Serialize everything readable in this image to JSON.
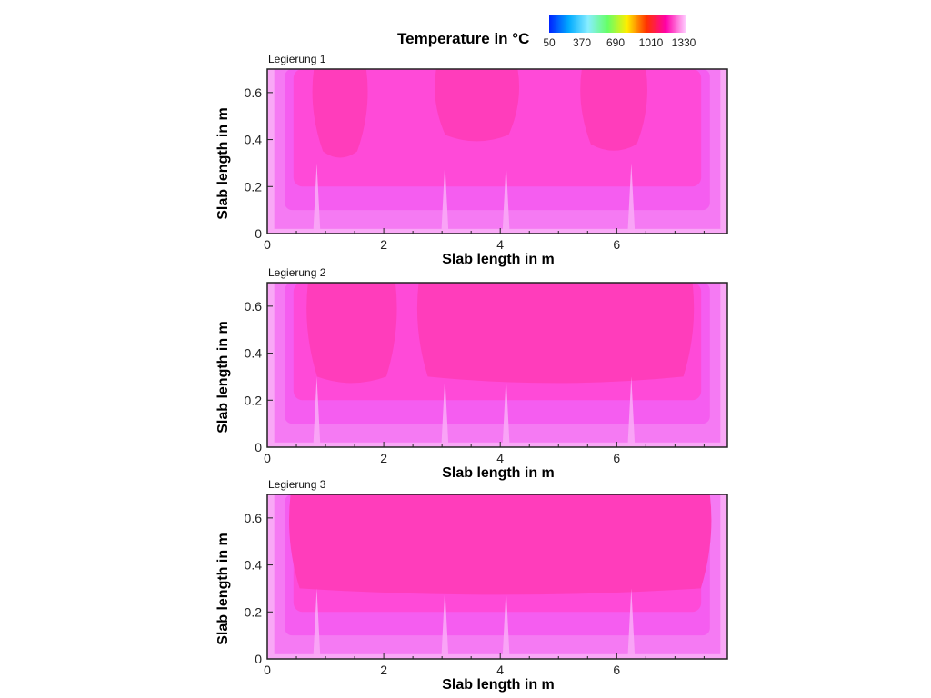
{
  "legend": {
    "title": "Temperature in °C",
    "ticks": [
      "50",
      "370",
      "690",
      "1010",
      "1330"
    ],
    "colors": [
      "#0022ff",
      "#00aaff",
      "#88eeff",
      "#66ff66",
      "#ffee00",
      "#ff3300",
      "#ff00aa",
      "#ffccff"
    ]
  },
  "colors": {
    "hot": "#ff3dbb",
    "warm": "#ff4ad8",
    "medium": "#f55df0",
    "cool": "#f57af3",
    "edge": "#f9a8f6",
    "frame": "#222222"
  },
  "chart_data": [
    {
      "type": "heatmap",
      "title": "Legierung 1",
      "xlabel": "Slab length in m",
      "ylabel": "Slab length in m",
      "xlim": [
        0,
        7.9
      ],
      "ylim": [
        0,
        0.7
      ],
      "xticks": [
        "0",
        "2",
        "4",
        "6"
      ],
      "yticks": [
        "0",
        "0.2",
        "0.4",
        "0.6"
      ],
      "hot_zones": [
        {
          "x": [
            0.8,
            1.7
          ],
          "y": [
            0.35,
            0.7
          ]
        },
        {
          "x": [
            2.9,
            4.3
          ],
          "y": [
            0.42,
            0.7
          ]
        },
        {
          "x": [
            5.4,
            6.5
          ],
          "y": [
            0.38,
            0.7
          ]
        }
      ]
    },
    {
      "type": "heatmap",
      "title": "Legierung 2",
      "xlabel": "Slab length in m",
      "ylabel": "Slab length in m",
      "xlim": [
        0,
        7.9
      ],
      "ylim": [
        0,
        0.7
      ],
      "xticks": [
        "0",
        "2",
        "4",
        "6"
      ],
      "yticks": [
        "0",
        "0.2",
        "0.4",
        "0.6"
      ],
      "hot_zones": [
        {
          "x": [
            0.7,
            2.2
          ],
          "y": [
            0.3,
            0.7
          ]
        },
        {
          "x": [
            2.6,
            7.3
          ],
          "y": [
            0.3,
            0.7
          ]
        }
      ]
    },
    {
      "type": "heatmap",
      "title": "Legierung 3",
      "xlabel": "Slab length in m",
      "ylabel": "Slab length in m",
      "xlim": [
        0,
        7.9
      ],
      "ylim": [
        0,
        0.7
      ],
      "xticks": [
        "0",
        "2",
        "4",
        "6"
      ],
      "yticks": [
        "0",
        "0.2",
        "0.4",
        "0.6"
      ],
      "hot_zones": [
        {
          "x": [
            0.4,
            7.6
          ],
          "y": [
            0.3,
            0.7
          ]
        }
      ]
    }
  ]
}
